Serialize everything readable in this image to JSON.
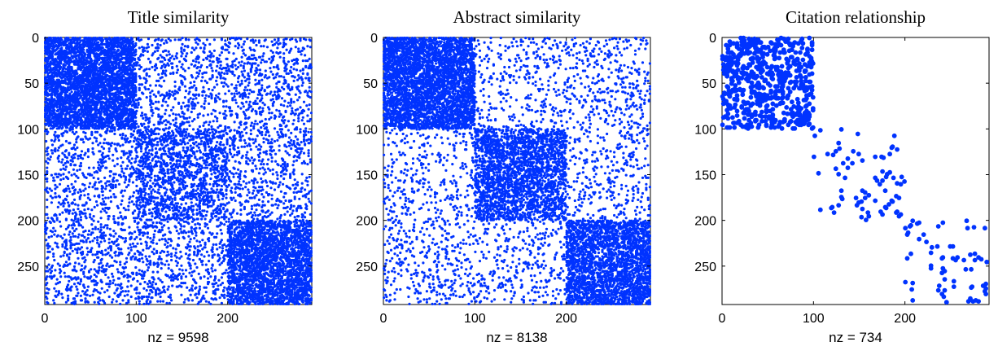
{
  "chart_data": [
    {
      "type": "spy",
      "title": "Title similarity",
      "xlabel": "nz = 9598",
      "nz": 9598,
      "n": 292,
      "xlim": [
        0,
        292
      ],
      "ylim": [
        0,
        292
      ],
      "y_reversed": true,
      "xticks": [
        0,
        100,
        200
      ],
      "yticks": [
        0,
        50,
        100,
        150,
        200,
        250
      ],
      "marker": "small",
      "color": "#0033ff",
      "blocks": [
        {
          "rows": [
            0,
            100
          ],
          "cols": [
            0,
            100
          ],
          "density": 0.33
        },
        {
          "rows": [
            100,
            200
          ],
          "cols": [
            100,
            200
          ],
          "density": 0.14
        },
        {
          "rows": [
            200,
            292
          ],
          "cols": [
            200,
            292
          ],
          "density": 0.29
        }
      ],
      "background_density": 0.06
    },
    {
      "type": "spy",
      "title": "Abstract similarity",
      "xlabel": "nz = 8138",
      "nz": 8138,
      "n": 292,
      "xlim": [
        0,
        292
      ],
      "ylim": [
        0,
        292
      ],
      "y_reversed": true,
      "xticks": [
        0,
        100,
        200
      ],
      "yticks": [
        0,
        50,
        100,
        150,
        200,
        250
      ],
      "marker": "small",
      "color": "#0033ff",
      "blocks": [
        {
          "rows": [
            0,
            100
          ],
          "cols": [
            0,
            100
          ],
          "density": 0.31
        },
        {
          "rows": [
            100,
            200
          ],
          "cols": [
            100,
            200
          ],
          "density": 0.22
        },
        {
          "rows": [
            200,
            292
          ],
          "cols": [
            200,
            292
          ],
          "density": 0.28
        }
      ],
      "background_density": 0.035
    },
    {
      "type": "spy",
      "title": "Citation relationship",
      "xlabel": "nz = 734",
      "nz": 734,
      "n": 292,
      "xlim": [
        0,
        292
      ],
      "ylim": [
        0,
        292
      ],
      "y_reversed": true,
      "xticks": [
        0,
        100,
        200
      ],
      "yticks": [
        0,
        50,
        100,
        150,
        200,
        250
      ],
      "marker": "large",
      "color": "#0033ff",
      "blocks": [
        {
          "rows": [
            0,
            100
          ],
          "cols": [
            0,
            100
          ],
          "density": 0.06
        },
        {
          "rows": [
            100,
            200
          ],
          "cols": [
            100,
            200
          ],
          "density": 0.01
        },
        {
          "rows": [
            200,
            292
          ],
          "cols": [
            200,
            292
          ],
          "density": 0.008
        }
      ],
      "background_density": 0
    }
  ]
}
